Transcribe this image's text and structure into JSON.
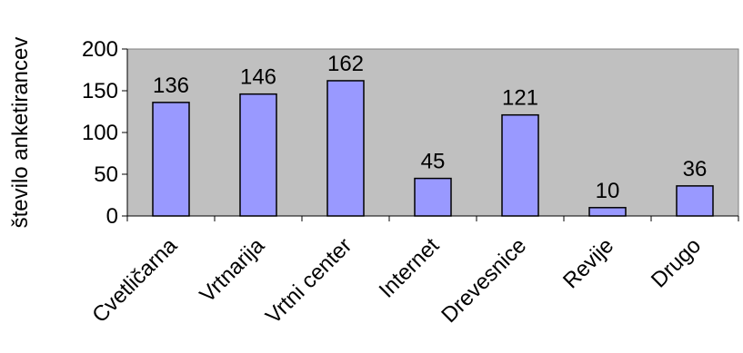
{
  "chart_data": {
    "type": "bar",
    "title": "",
    "xlabel": "",
    "ylabel": "število anketirancev",
    "categories": [
      "Cvetličarna",
      "Vrtnarija",
      "Vrtni center",
      "Internet",
      "Drevesnice",
      "Revije",
      "Drugo"
    ],
    "values": [
      136,
      146,
      162,
      45,
      121,
      10,
      36
    ],
    "value_labels": [
      "136",
      "146",
      "162",
      "45",
      "121",
      "10",
      "36"
    ],
    "ylim": [
      0,
      200
    ],
    "yticks": [
      0,
      50,
      100,
      150,
      200
    ],
    "ytick_labels": [
      "0",
      "50",
      "100",
      "150",
      "200"
    ],
    "grid": false,
    "legend": "none",
    "colors": {
      "plot_background": "#c0c0c0",
      "bar_fill": "#9999ff",
      "bar_stroke": "#000000"
    }
  }
}
